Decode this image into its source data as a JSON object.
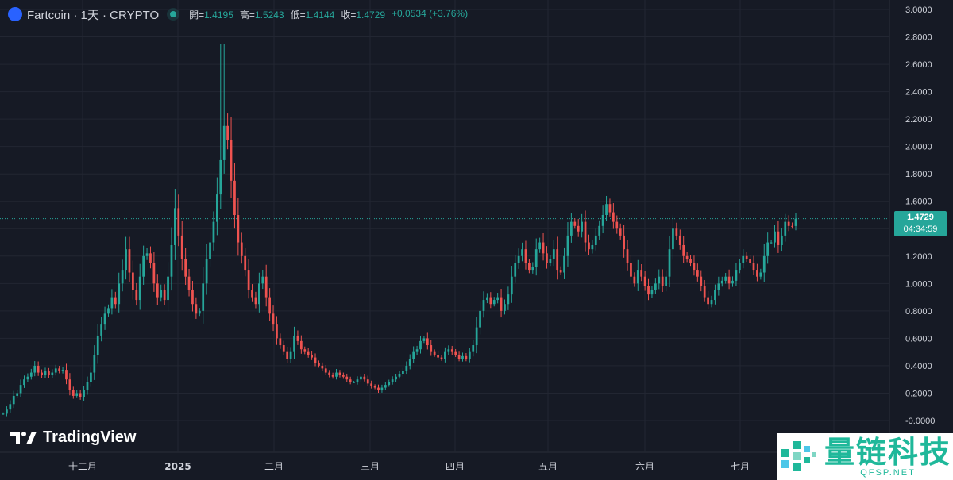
{
  "header": {
    "symbol": "Fartcoin · 1天 · CRYPTO",
    "open_label": "開=",
    "open_value": "1.4195",
    "high_label": "高=",
    "high_value": "1.5243",
    "low_label": "低=",
    "low_value": "1.4144",
    "close_label": "收=",
    "close_value": "1.4729",
    "change": "+0.0534 (+3.76%)"
  },
  "price_tag": {
    "price": "1.4729",
    "countdown": "04:34:59"
  },
  "logo_text": "TradingView",
  "watermark": {
    "cn": "量链科技",
    "en": "QFSP.NET"
  },
  "colors": {
    "background": "#161a25",
    "up": "#26a69a",
    "down": "#ef5350",
    "text": "#d1d4dc",
    "grid": "#222632"
  },
  "icons": {
    "coin": "fartcoin-logo-icon",
    "status": "market-open-dot-icon",
    "logo": "tradingview-logo-icon",
    "watermark": "qfsp-logo-icon"
  },
  "chart_data": {
    "type": "candlestick",
    "y_ticks": [
      "3.0000",
      "2.8000",
      "2.6000",
      "2.4000",
      "2.2000",
      "2.0000",
      "1.8000",
      "1.6000",
      "1.4000",
      "1.2000",
      "1.0000",
      "0.8000",
      "0.6000",
      "0.4000",
      "0.2000",
      "-0.0000"
    ],
    "x_ticks": [
      "十二月",
      "2025",
      "二月",
      "三月",
      "四月",
      "五月",
      "六月",
      "七月"
    ],
    "ylim": [
      0.0,
      3.0
    ],
    "last_price": 1.4729,
    "grid": true,
    "close_series": [
      0.05,
      0.08,
      0.12,
      0.18,
      0.2,
      0.26,
      0.3,
      0.32,
      0.35,
      0.4,
      0.35,
      0.33,
      0.36,
      0.33,
      0.35,
      0.38,
      0.36,
      0.37,
      0.3,
      0.22,
      0.18,
      0.2,
      0.17,
      0.22,
      0.28,
      0.35,
      0.48,
      0.62,
      0.7,
      0.78,
      0.82,
      0.9,
      0.85,
      1.0,
      1.1,
      1.25,
      1.08,
      0.95,
      0.88,
      1.05,
      1.2,
      1.22,
      1.15,
      1.0,
      0.9,
      0.95,
      0.88,
      1.05,
      1.28,
      1.55,
      1.35,
      1.18,
      1.05,
      0.95,
      0.85,
      0.78,
      0.8,
      1.0,
      1.18,
      1.3,
      1.45,
      1.65,
      1.9,
      2.15,
      2.05,
      1.75,
      1.5,
      1.3,
      1.2,
      1.1,
      0.95,
      0.9,
      0.85,
      1.0,
      1.05,
      0.9,
      0.78,
      0.7,
      0.6,
      0.55,
      0.5,
      0.45,
      0.5,
      0.62,
      0.58,
      0.52,
      0.5,
      0.48,
      0.46,
      0.42,
      0.4,
      0.38,
      0.35,
      0.33,
      0.32,
      0.35,
      0.33,
      0.32,
      0.3,
      0.28,
      0.28,
      0.3,
      0.32,
      0.3,
      0.27,
      0.25,
      0.24,
      0.22,
      0.24,
      0.26,
      0.28,
      0.3,
      0.32,
      0.34,
      0.36,
      0.4,
      0.45,
      0.5,
      0.52,
      0.58,
      0.6,
      0.55,
      0.5,
      0.48,
      0.46,
      0.45,
      0.5,
      0.52,
      0.5,
      0.48,
      0.45,
      0.47,
      0.45,
      0.5,
      0.55,
      0.68,
      0.8,
      0.88,
      0.9,
      0.85,
      0.88,
      0.9,
      0.8,
      0.85,
      0.92,
      1.05,
      1.15,
      1.2,
      1.25,
      1.15,
      1.1,
      1.12,
      1.25,
      1.3,
      1.22,
      1.15,
      1.18,
      1.25,
      1.1,
      1.08,
      1.2,
      1.35,
      1.45,
      1.42,
      1.38,
      1.45,
      1.3,
      1.25,
      1.28,
      1.35,
      1.42,
      1.5,
      1.58,
      1.52,
      1.45,
      1.4,
      1.35,
      1.25,
      1.15,
      1.05,
      1.0,
      1.1,
      1.05,
      0.98,
      0.92,
      0.95,
      1.0,
      1.05,
      0.98,
      1.05,
      1.25,
      1.4,
      1.35,
      1.28,
      1.2,
      1.18,
      1.15,
      1.1,
      1.05,
      0.98,
      0.9,
      0.85,
      0.88,
      0.95,
      1.0,
      1.02,
      1.05,
      1.0,
      1.02,
      1.1,
      1.15,
      1.2,
      1.18,
      1.15,
      1.1,
      1.05,
      1.08,
      1.2,
      1.3,
      1.3,
      1.38,
      1.28,
      1.35,
      1.45,
      1.42,
      1.4195,
      1.4729
    ]
  }
}
